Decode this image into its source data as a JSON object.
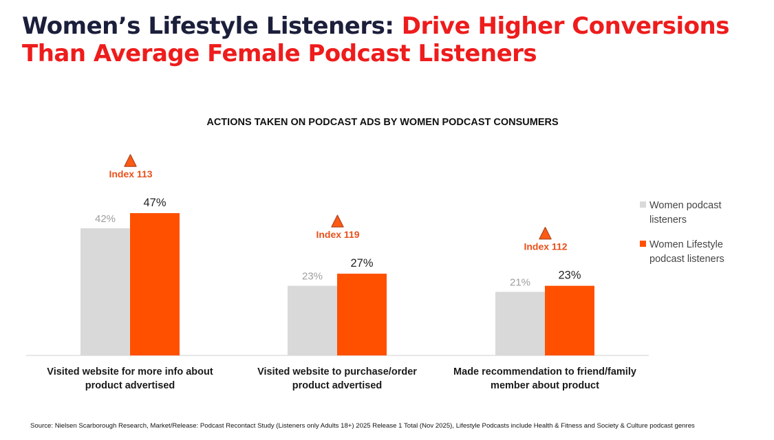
{
  "title": {
    "part1": "Women’s Lifestyle Listeners: ",
    "part2": "Drive Higher Conversions Than Average Female Podcast Listeners"
  },
  "colors": {
    "title_dark": "#1b1f3b",
    "title_accent": "#ee1c1c",
    "series_gray": "#d9d9d9",
    "series_orange": "#ff5000",
    "index_label": "#e8501a"
  },
  "chart_data": {
    "type": "bar",
    "title": "ACTIONS TAKEN ON PODCAST ADS BY WOMEN PODCAST CONSUMERS",
    "categories": [
      [
        "Visited website for more info about",
        "product advertised"
      ],
      [
        "Visited website to purchase/order",
        "product advertised"
      ],
      [
        "Made recommendation to friend/family",
        "member about product"
      ]
    ],
    "series": [
      {
        "name": "Women podcast listeners",
        "legend_lines": [
          "Women podcast",
          "listeners"
        ],
        "values": [
          42,
          23,
          21
        ],
        "labels": [
          "42%",
          "23%",
          "21%"
        ],
        "color": "#d9d9d9"
      },
      {
        "name": "Women Lifestyle podcast listeners",
        "legend_lines": [
          "Women Lifestyle",
          "podcast listeners"
        ],
        "values": [
          47,
          27,
          23
        ],
        "labels": [
          "47%",
          "27%",
          "23%"
        ],
        "color": "#ff5000"
      }
    ],
    "annotations": [
      "Index 113",
      "Index 119",
      "Index 112"
    ],
    "annotation_icon": "triangle-up-icon",
    "ylim": [
      0,
      47
    ],
    "grid": false,
    "legend_position": "right"
  },
  "source": "Source: Nielsen Scarborough Research, Market/Release: Podcast Recontact Study (Listeners only Adults 18+) 2025 Release 1 Total (Nov 2025), Lifestyle Podcasts include Health & Fitness and Society & Culture podcast genres"
}
